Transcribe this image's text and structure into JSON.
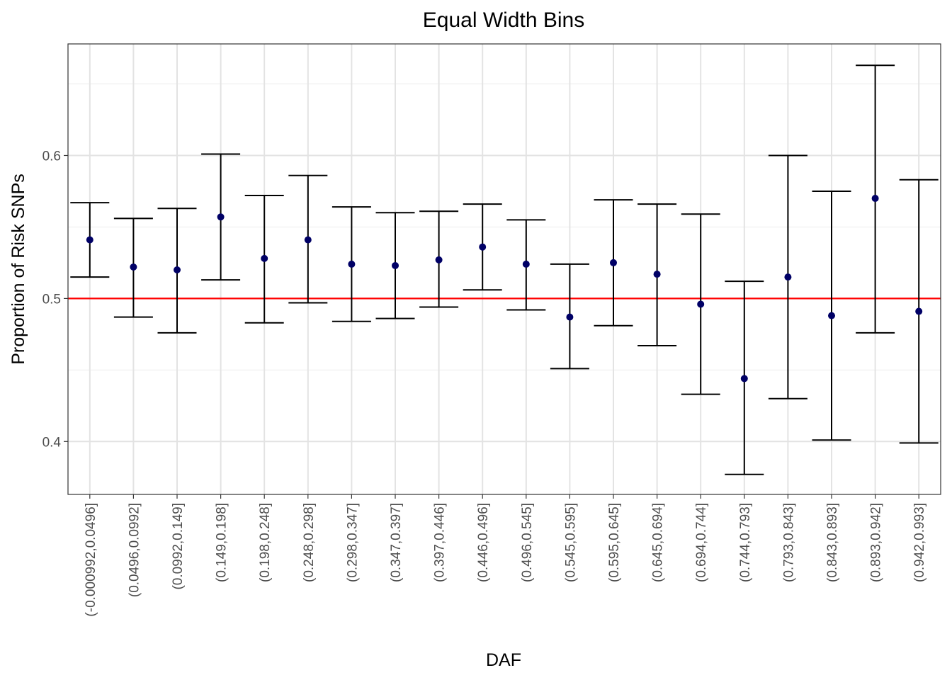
{
  "chart_data": {
    "type": "scatter",
    "title": "Equal Width Bins",
    "xlabel": "DAF",
    "ylabel": "Proportion of Risk SNPs",
    "ylim": [
      0.363,
      0.678
    ],
    "y_ticks": [
      0.4,
      0.5,
      0.6
    ],
    "y_tick_labels": [
      "0.4",
      "0.5",
      "0.6"
    ],
    "grid": true,
    "reference_line": {
      "y": 0.5,
      "color": "#ff0000"
    },
    "point_color": "#000066",
    "errorbar_color": "#000000",
    "categories": [
      "(-0.000992,0.0496]",
      "(0.0496,0.0992]",
      "(0.0992,0.149]",
      "(0.149,0.198]",
      "(0.198,0.248]",
      "(0.248,0.298]",
      "(0.298,0.347]",
      "(0.347,0.397]",
      "(0.397,0.446]",
      "(0.446,0.496]",
      "(0.496,0.545]",
      "(0.545,0.595]",
      "(0.595,0.645]",
      "(0.645,0.694]",
      "(0.694,0.744]",
      "(0.744,0.793]",
      "(0.793,0.843]",
      "(0.843,0.893]",
      "(0.893,0.942]",
      "(0.942,0.993]"
    ],
    "values": [
      0.541,
      0.522,
      0.52,
      0.557,
      0.528,
      0.541,
      0.524,
      0.523,
      0.527,
      0.536,
      0.524,
      0.487,
      0.525,
      0.517,
      0.496,
      0.444,
      0.515,
      0.488,
      0.57,
      0.491
    ],
    "lower": [
      0.515,
      0.487,
      0.476,
      0.513,
      0.483,
      0.497,
      0.484,
      0.486,
      0.494,
      0.506,
      0.492,
      0.451,
      0.481,
      0.467,
      0.433,
      0.377,
      0.43,
      0.401,
      0.476,
      0.399
    ],
    "upper": [
      0.567,
      0.556,
      0.563,
      0.601,
      0.572,
      0.586,
      0.564,
      0.56,
      0.561,
      0.566,
      0.555,
      0.524,
      0.569,
      0.566,
      0.559,
      0.512,
      0.6,
      0.575,
      0.663,
      0.583
    ]
  }
}
